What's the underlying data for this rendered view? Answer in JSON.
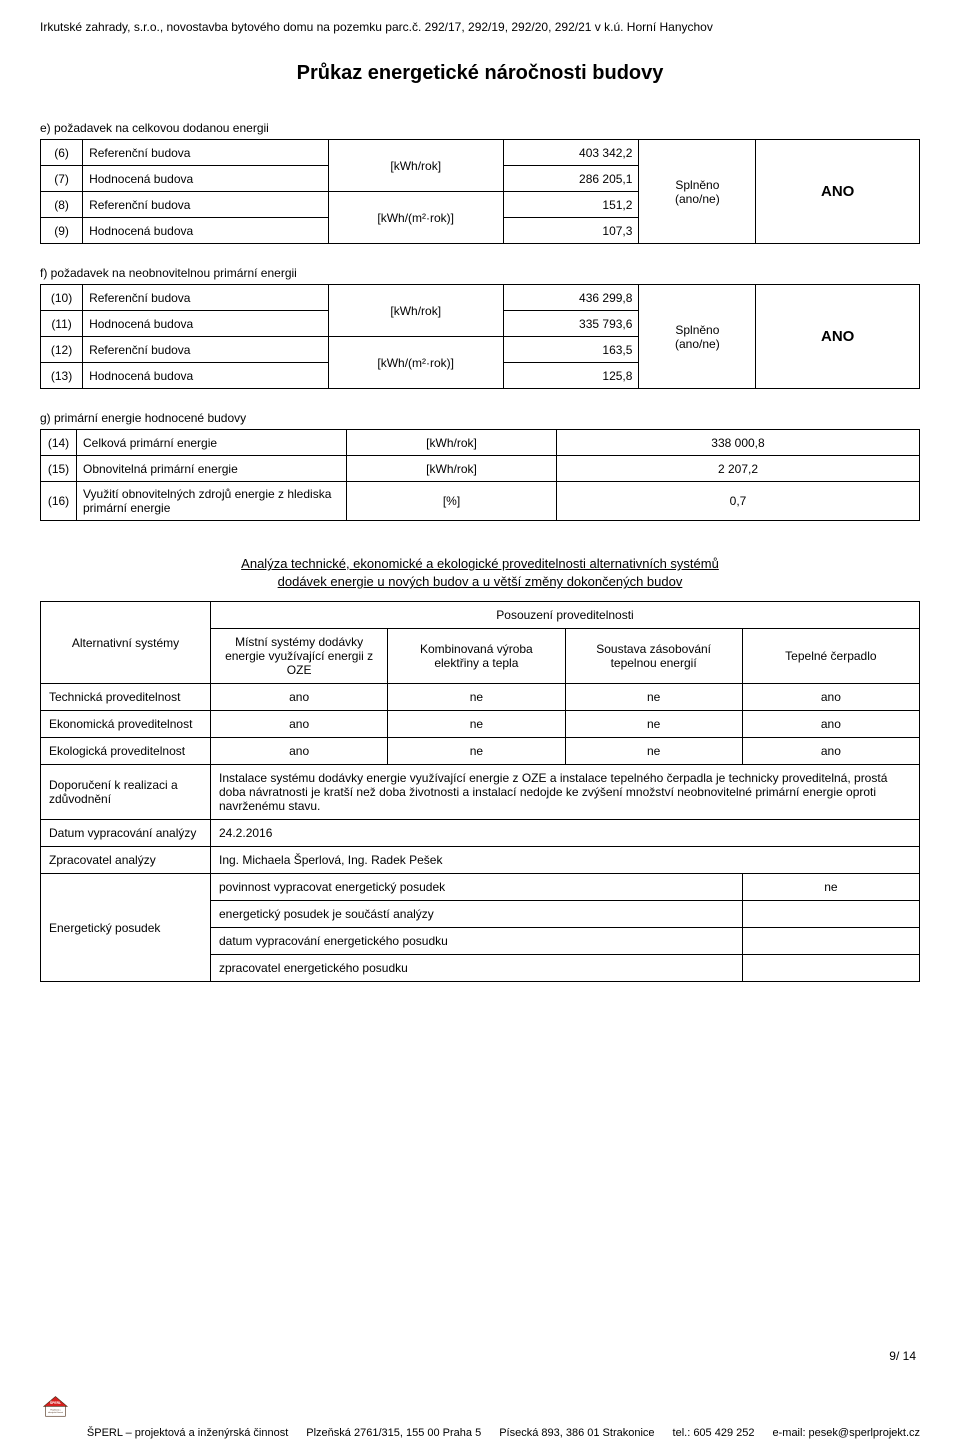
{
  "header": "Irkutské zahrady, s.r.o., novostavba bytového domu na pozemku parc.č. 292/17, 292/19, 292/20, 292/21 v k.ú. Horní Hanychov",
  "title": "Průkaz energetické náročnosti budovy",
  "section_e": {
    "heading": "e) požadavek na celkovou dodanou energii",
    "rows": [
      {
        "idx": "(6)",
        "name": "Referenční budova",
        "unit": "[kWh/rok]",
        "val": "403 342,2",
        "unit_rowspan": 2,
        "unit_show": true
      },
      {
        "idx": "(7)",
        "name": "Hodnocená budova",
        "val": "286 205,1",
        "unit_show": false
      },
      {
        "idx": "(8)",
        "name": "Referenční budova",
        "unit": "[kWh/(m²·rok)]",
        "val": "151,2",
        "unit_rowspan": 2,
        "unit_show": true
      },
      {
        "idx": "(9)",
        "name": "Hodnocená budova",
        "val": "107,3",
        "unit_show": false
      }
    ],
    "status": "Splněno\n(ano/ne)",
    "result": "ANO"
  },
  "section_f": {
    "heading": "f) požadavek na neobnovitelnou primární energii",
    "rows": [
      {
        "idx": "(10)",
        "name": "Referenční budova",
        "unit": "[kWh/rok]",
        "val": "436 299,8",
        "unit_rowspan": 2,
        "unit_show": true
      },
      {
        "idx": "(11)",
        "name": "Hodnocená budova",
        "val": "335 793,6",
        "unit_show": false
      },
      {
        "idx": "(12)",
        "name": "Referenční budova",
        "unit": "[kWh/(m²·rok)]",
        "val": "163,5",
        "unit_rowspan": 2,
        "unit_show": true
      },
      {
        "idx": "(13)",
        "name": "Hodnocená budova",
        "val": "125,8",
        "unit_show": false
      }
    ],
    "status": "Splněno\n(ano/ne)",
    "result": "ANO"
  },
  "section_g": {
    "heading": "g) primární energie hodnocené budovy",
    "rows": [
      {
        "idx": "(14)",
        "name": "Celková primární energie",
        "unit": "[kWh/rok]",
        "val": "338 000,8"
      },
      {
        "idx": "(15)",
        "name": "Obnovitelná primární energie",
        "unit": "[kWh/rok]",
        "val": "2 207,2"
      },
      {
        "idx": "(16)",
        "name": "Využití obnovitelných zdrojů energie z hlediska primární energie",
        "unit": "[%]",
        "val": "0,7"
      }
    ]
  },
  "analysis": {
    "title_line1": "Analýza technické, ekonomické a ekologické proveditelnosti alternativních systémů",
    "title_line2": "dodávek energie u nových budov a u větší změny dokončených budov",
    "posouzeni_label": "Posouzení proveditelnosti",
    "alt_label": "Alternativní systémy",
    "cols": [
      "Místní systémy dodávky energie využívající energii z OZE",
      "Kombinovaná výroba elektřiny a tepla",
      "Soustava zásobování tepelnou energií",
      "Tepelné čerpadlo"
    ],
    "rows": [
      {
        "label": "Technická proveditelnost",
        "vals": [
          "ano",
          "ne",
          "ne",
          "ano"
        ]
      },
      {
        "label": "Ekonomická proveditelnost",
        "vals": [
          "ano",
          "ne",
          "ne",
          "ano"
        ]
      },
      {
        "label": "Ekologická proveditelnost",
        "vals": [
          "ano",
          "ne",
          "ne",
          "ano"
        ]
      }
    ],
    "recommend_label": "Doporučení k realizaci a zdůvodnění",
    "recommend_text": "Instalace systému dodávky energie využívající energie z OZE a instalace tepelného čerpadla je technicky proveditelná, prostá doba návratnosti je kratší než doba životnosti a instalací nedojde ke zvýšení množství neobnovitelné primární energie oproti navrženému stavu.",
    "date_label": "Datum vypracování analýzy",
    "date_val": "24.2.2016",
    "author_label": "Zpracovatel analýzy",
    "author_val": "Ing. Michaela Šperlová, Ing. Radek Pešek",
    "posudek_label": "Energetický posudek",
    "posudek_rows": [
      {
        "text": "povinnost vypracovat energetický posudek",
        "val": "ne"
      },
      {
        "text": "energetický posudek je součástí analýzy",
        "val": ""
      },
      {
        "text": "datum vypracování energetického posudku",
        "val": ""
      },
      {
        "text": "zpracovatel energetického posudku",
        "val": ""
      }
    ]
  },
  "page_number": "9/ 14",
  "footer": {
    "company": "ŠPERL – projektová a inženýrská činnost",
    "addr1": "Plzeňská 2761/315, 155 00 Praha 5",
    "addr2": "Písecká 893, 386 01 Strakonice",
    "tel": "tel.: 605 429 252",
    "email": "e-mail: pesek@sperlprojekt.cz",
    "logo_top": "ŠPERL",
    "logo_bottom": "Projektová a inženýrská činnost"
  },
  "colors": {
    "red": "#d6201f",
    "dark": "#4a2c16"
  }
}
